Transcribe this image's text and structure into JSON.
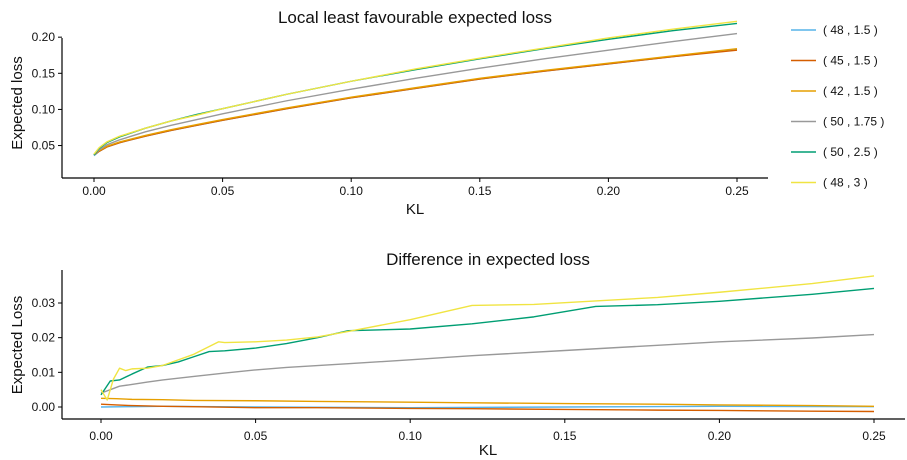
{
  "chart_data": [
    {
      "type": "line",
      "title": "Local least favourable expected loss",
      "xlabel": "KL",
      "ylabel": "Expected loss",
      "xlim": [
        0,
        0.25
      ],
      "ylim": [
        0.03,
        0.23
      ],
      "xticks": [
        0.0,
        0.05,
        0.1,
        0.15,
        0.2,
        0.25
      ],
      "xtick_labels": [
        "0.00",
        "0.05",
        "0.10",
        "0.15",
        "0.20",
        "0.25"
      ],
      "yticks": [
        0.05,
        0.1,
        0.15,
        0.2
      ],
      "ytick_labels": [
        "0.05",
        "0.10",
        "0.15",
        "0.20"
      ],
      "grid": false,
      "x": [
        0.0,
        0.002,
        0.005,
        0.01,
        0.02,
        0.03,
        0.04,
        0.05,
        0.075,
        0.1,
        0.125,
        0.15,
        0.175,
        0.2,
        0.225,
        0.25
      ],
      "series": [
        {
          "name": "( 48 , 1.5 )",
          "color": "#56B4E9",
          "values": [
            0.036,
            0.042,
            0.048,
            0.054,
            0.063,
            0.071,
            0.078,
            0.085,
            0.101,
            0.116,
            0.129,
            0.142,
            0.153,
            0.163,
            0.173,
            0.183
          ]
        },
        {
          "name": "( 45 , 1.5 )",
          "color": "#D55E00",
          "values": [
            0.037,
            0.042,
            0.048,
            0.054,
            0.063,
            0.071,
            0.078,
            0.085,
            0.101,
            0.116,
            0.129,
            0.142,
            0.153,
            0.163,
            0.173,
            0.182
          ]
        },
        {
          "name": "( 42 , 1.5 )",
          "color": "#E69F00",
          "values": [
            0.038,
            0.043,
            0.049,
            0.055,
            0.064,
            0.072,
            0.079,
            0.086,
            0.102,
            0.117,
            0.13,
            0.143,
            0.154,
            0.164,
            0.174,
            0.184
          ]
        },
        {
          "name": "( 50 , 1.75 )",
          "color": "#999999",
          "values": [
            0.037,
            0.044,
            0.051,
            0.058,
            0.069,
            0.078,
            0.086,
            0.094,
            0.112,
            0.128,
            0.143,
            0.157,
            0.17,
            0.182,
            0.194,
            0.205
          ]
        },
        {
          "name": "( 50 , 2.5 )",
          "color": "#009E73",
          "values": [
            0.037,
            0.046,
            0.054,
            0.062,
            0.074,
            0.084,
            0.093,
            0.101,
            0.121,
            0.139,
            0.155,
            0.17,
            0.184,
            0.197,
            0.209,
            0.219
          ]
        },
        {
          "name": "( 48 , 3 )",
          "color": "#F0E442",
          "values": [
            0.038,
            0.047,
            0.055,
            0.063,
            0.074,
            0.084,
            0.092,
            0.101,
            0.121,
            0.139,
            0.156,
            0.171,
            0.185,
            0.199,
            0.211,
            0.222
          ]
        }
      ]
    },
    {
      "type": "line",
      "title": "Difference in expected loss",
      "xlabel": "KL",
      "ylabel": "Expected Loss",
      "xlim": [
        0,
        0.25
      ],
      "ylim": [
        -0.003,
        0.039
      ],
      "xticks": [
        0.0,
        0.05,
        0.1,
        0.15,
        0.2,
        0.25
      ],
      "xtick_labels": [
        "0.00",
        "0.05",
        "0.10",
        "0.15",
        "0.20",
        "0.25"
      ],
      "yticks": [
        0.0,
        0.01,
        0.02,
        0.03
      ],
      "ytick_labels": [
        "0.00",
        "0.01",
        "0.02",
        "0.03"
      ],
      "grid": false,
      "series": [
        {
          "name": "( 48 , 1.5 )",
          "color": "#56B4E9",
          "x": [
            0.0,
            0.01,
            0.02,
            0.05,
            0.1,
            0.15,
            0.2,
            0.25
          ],
          "values": [
            0.0,
            0.0001,
            0.0002,
            0.0,
            -0.0002,
            0.0,
            0.0002,
            0.0001
          ]
        },
        {
          "name": "( 45 , 1.5 )",
          "color": "#D55E00",
          "x": [
            0.0,
            0.005,
            0.01,
            0.02,
            0.03,
            0.05,
            0.07,
            0.1,
            0.12,
            0.15,
            0.18,
            0.2,
            0.23,
            0.25
          ],
          "values": [
            0.0008,
            0.0006,
            0.0004,
            0.0002,
            0.0001,
            -0.0002,
            -0.0002,
            -0.0004,
            -0.0005,
            -0.0007,
            -0.0009,
            -0.001,
            -0.0012,
            -0.0013
          ]
        },
        {
          "name": "( 42 , 1.5 )",
          "color": "#E69F00",
          "x": [
            0.0,
            0.005,
            0.01,
            0.02,
            0.03,
            0.05,
            0.07,
            0.1,
            0.12,
            0.15,
            0.18,
            0.2,
            0.23,
            0.25
          ],
          "values": [
            0.0025,
            0.0024,
            0.0022,
            0.0021,
            0.0019,
            0.0018,
            0.0016,
            0.0014,
            0.0012,
            0.001,
            0.0008,
            0.0006,
            0.0004,
            0.0002
          ]
        },
        {
          "name": "( 50 , 1.75 )",
          "color": "#999999",
          "x": [
            0.0,
            0.003,
            0.006,
            0.01,
            0.015,
            0.02,
            0.025,
            0.03,
            0.04,
            0.05,
            0.06,
            0.08,
            0.1,
            0.12,
            0.15,
            0.18,
            0.2,
            0.23,
            0.25
          ],
          "values": [
            0.004,
            0.005,
            0.006,
            0.0065,
            0.0072,
            0.0078,
            0.0083,
            0.0088,
            0.0098,
            0.0107,
            0.0114,
            0.0125,
            0.0136,
            0.0148,
            0.0163,
            0.0178,
            0.0188,
            0.0199,
            0.0209
          ]
        },
        {
          "name": "( 50 , 2.5 )",
          "color": "#009E73",
          "x": [
            0.0,
            0.003,
            0.006,
            0.01,
            0.015,
            0.02,
            0.025,
            0.03,
            0.035,
            0.04,
            0.05,
            0.06,
            0.07,
            0.08,
            0.1,
            0.12,
            0.14,
            0.16,
            0.18,
            0.2,
            0.23,
            0.25
          ],
          "values": [
            0.0035,
            0.0075,
            0.0078,
            0.0095,
            0.0115,
            0.012,
            0.013,
            0.0145,
            0.016,
            0.0162,
            0.017,
            0.0183,
            0.02,
            0.022,
            0.0225,
            0.024,
            0.026,
            0.029,
            0.0295,
            0.0305,
            0.0325,
            0.0342
          ]
        },
        {
          "name": "( 48 , 3 )",
          "color": "#F0E442",
          "x": [
            0.0,
            0.002,
            0.004,
            0.006,
            0.008,
            0.01,
            0.015,
            0.02,
            0.03,
            0.038,
            0.04,
            0.05,
            0.06,
            0.07,
            0.08,
            0.1,
            0.12,
            0.14,
            0.16,
            0.18,
            0.2,
            0.23,
            0.25
          ],
          "values": [
            0.005,
            0.002,
            0.008,
            0.0112,
            0.0105,
            0.011,
            0.0112,
            0.012,
            0.0152,
            0.0188,
            0.0186,
            0.0188,
            0.0193,
            0.0202,
            0.0218,
            0.0252,
            0.0293,
            0.0296,
            0.0306,
            0.0316,
            0.0331,
            0.0356,
            0.0378
          ]
        }
      ]
    }
  ],
  "legend": {
    "position": "right",
    "entries": [
      {
        "label": "( 48 , 1.5 )",
        "color": "#56B4E9"
      },
      {
        "label": "( 45 , 1.5 )",
        "color": "#D55E00"
      },
      {
        "label": "( 42 , 1.5 )",
        "color": "#E69F00"
      },
      {
        "label": "( 50 , 1.75 )",
        "color": "#999999"
      },
      {
        "label": "( 50 , 2.5 )",
        "color": "#009E73"
      },
      {
        "label": "( 48 , 3 )",
        "color": "#F0E442"
      }
    ]
  }
}
